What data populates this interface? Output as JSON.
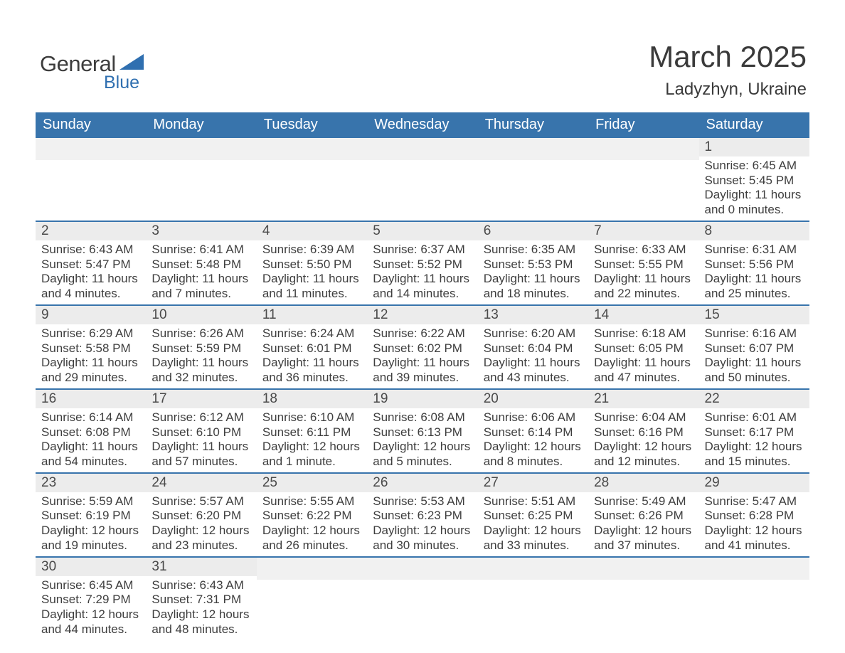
{
  "brand": {
    "word1": "General",
    "word2": "Blue",
    "logo_color": "#2f6fb0",
    "text_color": "#3d3d3d"
  },
  "title": {
    "month_year": "March 2025",
    "location": "Ladyzhyn, Ukraine"
  },
  "colors": {
    "header_bg": "#3874ac",
    "header_text": "#ffffff",
    "daynum_bg": "#ececec",
    "row_divider": "#3874ac",
    "body_text": "#3e3e3e",
    "page_bg": "#ffffff"
  },
  "weekdays": [
    "Sunday",
    "Monday",
    "Tuesday",
    "Wednesday",
    "Thursday",
    "Friday",
    "Saturday"
  ],
  "weeks": [
    [
      {
        "day": null
      },
      {
        "day": null
      },
      {
        "day": null
      },
      {
        "day": null
      },
      {
        "day": null
      },
      {
        "day": null
      },
      {
        "day": 1,
        "sunrise": "6:45 AM",
        "sunset": "5:45 PM",
        "daylight": "11 hours and 0 minutes."
      }
    ],
    [
      {
        "day": 2,
        "sunrise": "6:43 AM",
        "sunset": "5:47 PM",
        "daylight": "11 hours and 4 minutes."
      },
      {
        "day": 3,
        "sunrise": "6:41 AM",
        "sunset": "5:48 PM",
        "daylight": "11 hours and 7 minutes."
      },
      {
        "day": 4,
        "sunrise": "6:39 AM",
        "sunset": "5:50 PM",
        "daylight": "11 hours and 11 minutes."
      },
      {
        "day": 5,
        "sunrise": "6:37 AM",
        "sunset": "5:52 PM",
        "daylight": "11 hours and 14 minutes."
      },
      {
        "day": 6,
        "sunrise": "6:35 AM",
        "sunset": "5:53 PM",
        "daylight": "11 hours and 18 minutes."
      },
      {
        "day": 7,
        "sunrise": "6:33 AM",
        "sunset": "5:55 PM",
        "daylight": "11 hours and 22 minutes."
      },
      {
        "day": 8,
        "sunrise": "6:31 AM",
        "sunset": "5:56 PM",
        "daylight": "11 hours and 25 minutes."
      }
    ],
    [
      {
        "day": 9,
        "sunrise": "6:29 AM",
        "sunset": "5:58 PM",
        "daylight": "11 hours and 29 minutes."
      },
      {
        "day": 10,
        "sunrise": "6:26 AM",
        "sunset": "5:59 PM",
        "daylight": "11 hours and 32 minutes."
      },
      {
        "day": 11,
        "sunrise": "6:24 AM",
        "sunset": "6:01 PM",
        "daylight": "11 hours and 36 minutes."
      },
      {
        "day": 12,
        "sunrise": "6:22 AM",
        "sunset": "6:02 PM",
        "daylight": "11 hours and 39 minutes."
      },
      {
        "day": 13,
        "sunrise": "6:20 AM",
        "sunset": "6:04 PM",
        "daylight": "11 hours and 43 minutes."
      },
      {
        "day": 14,
        "sunrise": "6:18 AM",
        "sunset": "6:05 PM",
        "daylight": "11 hours and 47 minutes."
      },
      {
        "day": 15,
        "sunrise": "6:16 AM",
        "sunset": "6:07 PM",
        "daylight": "11 hours and 50 minutes."
      }
    ],
    [
      {
        "day": 16,
        "sunrise": "6:14 AM",
        "sunset": "6:08 PM",
        "daylight": "11 hours and 54 minutes."
      },
      {
        "day": 17,
        "sunrise": "6:12 AM",
        "sunset": "6:10 PM",
        "daylight": "11 hours and 57 minutes."
      },
      {
        "day": 18,
        "sunrise": "6:10 AM",
        "sunset": "6:11 PM",
        "daylight": "12 hours and 1 minute."
      },
      {
        "day": 19,
        "sunrise": "6:08 AM",
        "sunset": "6:13 PM",
        "daylight": "12 hours and 5 minutes."
      },
      {
        "day": 20,
        "sunrise": "6:06 AM",
        "sunset": "6:14 PM",
        "daylight": "12 hours and 8 minutes."
      },
      {
        "day": 21,
        "sunrise": "6:04 AM",
        "sunset": "6:16 PM",
        "daylight": "12 hours and 12 minutes."
      },
      {
        "day": 22,
        "sunrise": "6:01 AM",
        "sunset": "6:17 PM",
        "daylight": "12 hours and 15 minutes."
      }
    ],
    [
      {
        "day": 23,
        "sunrise": "5:59 AM",
        "sunset": "6:19 PM",
        "daylight": "12 hours and 19 minutes."
      },
      {
        "day": 24,
        "sunrise": "5:57 AM",
        "sunset": "6:20 PM",
        "daylight": "12 hours and 23 minutes."
      },
      {
        "day": 25,
        "sunrise": "5:55 AM",
        "sunset": "6:22 PM",
        "daylight": "12 hours and 26 minutes."
      },
      {
        "day": 26,
        "sunrise": "5:53 AM",
        "sunset": "6:23 PM",
        "daylight": "12 hours and 30 minutes."
      },
      {
        "day": 27,
        "sunrise": "5:51 AM",
        "sunset": "6:25 PM",
        "daylight": "12 hours and 33 minutes."
      },
      {
        "day": 28,
        "sunrise": "5:49 AM",
        "sunset": "6:26 PM",
        "daylight": "12 hours and 37 minutes."
      },
      {
        "day": 29,
        "sunrise": "5:47 AM",
        "sunset": "6:28 PM",
        "daylight": "12 hours and 41 minutes."
      }
    ],
    [
      {
        "day": 30,
        "sunrise": "6:45 AM",
        "sunset": "7:29 PM",
        "daylight": "12 hours and 44 minutes."
      },
      {
        "day": 31,
        "sunrise": "6:43 AM",
        "sunset": "7:31 PM",
        "daylight": "12 hours and 48 minutes."
      },
      {
        "day": null
      },
      {
        "day": null
      },
      {
        "day": null
      },
      {
        "day": null
      },
      {
        "day": null
      }
    ]
  ],
  "labels": {
    "sunrise": "Sunrise:",
    "sunset": "Sunset:",
    "daylight": "Daylight:"
  }
}
